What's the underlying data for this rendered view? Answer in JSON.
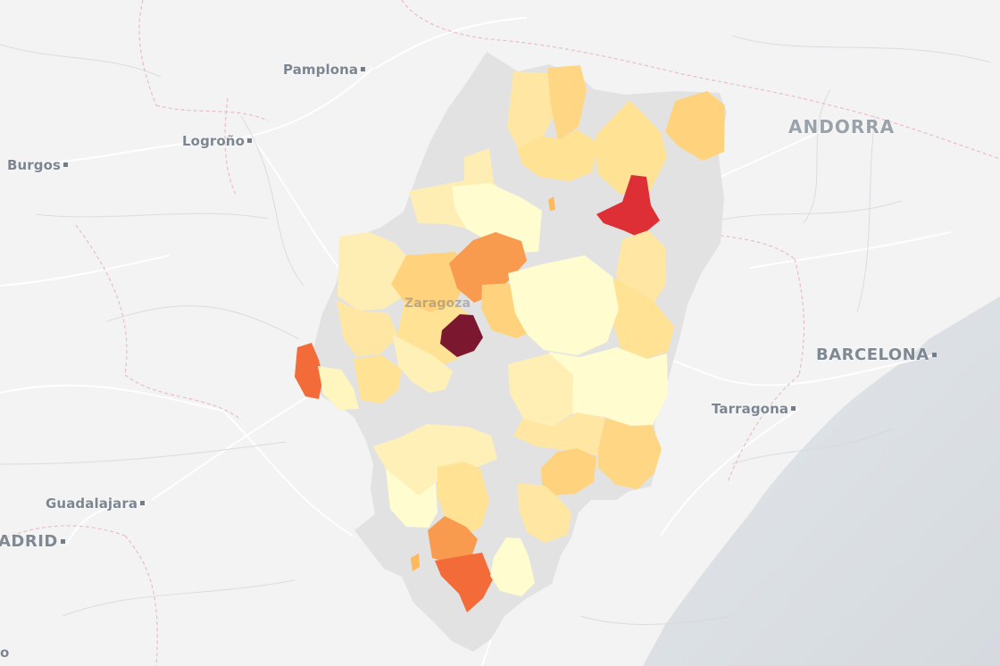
{
  "map": {
    "labels": {
      "pamplona": "Pamplona",
      "logrono": "Logroño",
      "burgos": "Burgos",
      "andorra": "ANDORRA",
      "barcelona": "BARCELONA",
      "tarragona": "Tarragona",
      "guadalajara": "Guadalajara",
      "madrid": "ADRID",
      "zaragoza": "Zaragoza",
      "partial_left": "o"
    },
    "colors": {
      "land": "#f3f3f3",
      "sea": "#d8dde2",
      "road": "#ffffff",
      "border": "#e8b7c4",
      "missing": "#e2e2e2",
      "light": "#fffccf",
      "pale": "#ffe9a8",
      "medium": "#ffd37d",
      "orange": "#f99b4e",
      "red_orange": "#f26b39",
      "red": "#df2f36",
      "dark": "#7c1730"
    }
  }
}
